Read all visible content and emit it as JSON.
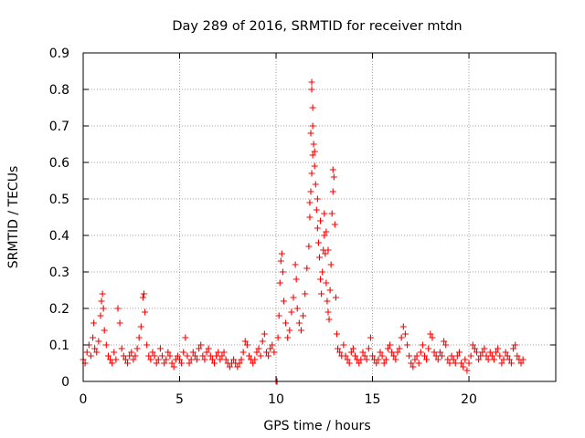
{
  "chart_data": {
    "type": "scatter",
    "title": "Day 289 of 2016, SRMTID for receiver mtdn",
    "xlabel": "GPS time / hours",
    "ylabel": "SRMTID / TECUs",
    "xlim": [
      0,
      24.5
    ],
    "ylim": [
      0,
      0.9
    ],
    "x_ticks": [
      0,
      5,
      10,
      15,
      20
    ],
    "x_tick_labels": [
      "0",
      "5",
      "10",
      "15",
      "20"
    ],
    "y_ticks": [
      0,
      0.1,
      0.2,
      0.3,
      0.4,
      0.5,
      0.6,
      0.7,
      0.8,
      0.9
    ],
    "y_tick_labels": [
      "0",
      "0.1",
      "0.2",
      "0.3",
      "0.4",
      "0.5",
      "0.6",
      "0.7",
      "0.8",
      "0.9"
    ],
    "grid": true,
    "marker": "+",
    "series": [
      {
        "name": "SRMTID",
        "color": "#ff0000",
        "points": [
          [
            0.0,
            0.06
          ],
          [
            0.1,
            0.05
          ],
          [
            0.2,
            0.08
          ],
          [
            0.3,
            0.1
          ],
          [
            0.4,
            0.07
          ],
          [
            0.5,
            0.12
          ],
          [
            0.55,
            0.16
          ],
          [
            0.6,
            0.09
          ],
          [
            0.7,
            0.08
          ],
          [
            0.8,
            0.11
          ],
          [
            0.9,
            0.18
          ],
          [
            0.95,
            0.22
          ],
          [
            1.0,
            0.24
          ],
          [
            1.05,
            0.2
          ],
          [
            1.1,
            0.14
          ],
          [
            1.2,
            0.1
          ],
          [
            1.3,
            0.07
          ],
          [
            1.4,
            0.06
          ],
          [
            1.5,
            0.05
          ],
          [
            1.6,
            0.08
          ],
          [
            1.7,
            0.06
          ],
          [
            1.8,
            0.2
          ],
          [
            1.9,
            0.16
          ],
          [
            2.0,
            0.09
          ],
          [
            2.1,
            0.07
          ],
          [
            2.2,
            0.06
          ],
          [
            2.3,
            0.05
          ],
          [
            2.4,
            0.07
          ],
          [
            2.5,
            0.08
          ],
          [
            2.6,
            0.06
          ],
          [
            2.7,
            0.07
          ],
          [
            2.8,
            0.09
          ],
          [
            2.9,
            0.12
          ],
          [
            3.0,
            0.15
          ],
          [
            3.1,
            0.23
          ],
          [
            3.15,
            0.24
          ],
          [
            3.2,
            0.19
          ],
          [
            3.3,
            0.1
          ],
          [
            3.4,
            0.07
          ],
          [
            3.5,
            0.06
          ],
          [
            3.6,
            0.08
          ],
          [
            3.7,
            0.07
          ],
          [
            3.8,
            0.05
          ],
          [
            3.9,
            0.06
          ],
          [
            4.0,
            0.09
          ],
          [
            4.1,
            0.07
          ],
          [
            4.2,
            0.05
          ],
          [
            4.3,
            0.06
          ],
          [
            4.4,
            0.08
          ],
          [
            4.5,
            0.07
          ],
          [
            4.6,
            0.05
          ],
          [
            4.7,
            0.04
          ],
          [
            4.8,
            0.06
          ],
          [
            4.9,
            0.07
          ],
          [
            5.0,
            0.06
          ],
          [
            5.1,
            0.05
          ],
          [
            5.2,
            0.08
          ],
          [
            5.3,
            0.12
          ],
          [
            5.4,
            0.07
          ],
          [
            5.5,
            0.05
          ],
          [
            5.6,
            0.06
          ],
          [
            5.7,
            0.08
          ],
          [
            5.8,
            0.07
          ],
          [
            5.9,
            0.06
          ],
          [
            6.0,
            0.09
          ],
          [
            6.1,
            0.1
          ],
          [
            6.2,
            0.07
          ],
          [
            6.3,
            0.06
          ],
          [
            6.4,
            0.08
          ],
          [
            6.5,
            0.09
          ],
          [
            6.6,
            0.07
          ],
          [
            6.7,
            0.06
          ],
          [
            6.8,
            0.05
          ],
          [
            6.9,
            0.07
          ],
          [
            7.0,
            0.08
          ],
          [
            7.1,
            0.06
          ],
          [
            7.2,
            0.07
          ],
          [
            7.3,
            0.08
          ],
          [
            7.4,
            0.06
          ],
          [
            7.5,
            0.05
          ],
          [
            7.6,
            0.04
          ],
          [
            7.7,
            0.05
          ],
          [
            7.8,
            0.06
          ],
          [
            7.9,
            0.05
          ],
          [
            8.0,
            0.04
          ],
          [
            8.1,
            0.05
          ],
          [
            8.2,
            0.06
          ],
          [
            8.3,
            0.08
          ],
          [
            8.4,
            0.11
          ],
          [
            8.5,
            0.1
          ],
          [
            8.6,
            0.07
          ],
          [
            8.7,
            0.06
          ],
          [
            8.8,
            0.05
          ],
          [
            8.9,
            0.06
          ],
          [
            9.0,
            0.08
          ],
          [
            9.1,
            0.09
          ],
          [
            9.2,
            0.07
          ],
          [
            9.3,
            0.11
          ],
          [
            9.4,
            0.13
          ],
          [
            9.5,
            0.08
          ],
          [
            9.6,
            0.07
          ],
          [
            9.7,
            0.09
          ],
          [
            9.8,
            0.1
          ],
          [
            9.9,
            0.08
          ],
          [
            10.0,
            0.0
          ],
          [
            10.05,
            0.0
          ],
          [
            10.1,
            0.12
          ],
          [
            10.15,
            0.18
          ],
          [
            10.2,
            0.27
          ],
          [
            10.25,
            0.33
          ],
          [
            10.3,
            0.35
          ],
          [
            10.35,
            0.3
          ],
          [
            10.4,
            0.22
          ],
          [
            10.5,
            0.16
          ],
          [
            10.6,
            0.12
          ],
          [
            10.7,
            0.14
          ],
          [
            10.8,
            0.19
          ],
          [
            10.9,
            0.23
          ],
          [
            11.0,
            0.32
          ],
          [
            11.05,
            0.28
          ],
          [
            11.1,
            0.2
          ],
          [
            11.2,
            0.16
          ],
          [
            11.3,
            0.14
          ],
          [
            11.4,
            0.18
          ],
          [
            11.5,
            0.24
          ],
          [
            11.6,
            0.31
          ],
          [
            11.7,
            0.37
          ],
          [
            11.75,
            0.45
          ],
          [
            11.8,
            0.52
          ],
          [
            11.85,
            0.57
          ],
          [
            11.9,
            0.62
          ],
          [
            11.95,
            0.65
          ],
          [
            12.0,
            0.59
          ],
          [
            12.05,
            0.54
          ],
          [
            12.1,
            0.47
          ],
          [
            12.15,
            0.42
          ],
          [
            12.2,
            0.38
          ],
          [
            12.25,
            0.34
          ],
          [
            12.3,
            0.28
          ],
          [
            12.35,
            0.24
          ],
          [
            12.4,
            0.3
          ],
          [
            12.45,
            0.36
          ],
          [
            12.5,
            0.4
          ],
          [
            12.55,
            0.35
          ],
          [
            12.6,
            0.27
          ],
          [
            12.65,
            0.22
          ],
          [
            12.7,
            0.19
          ],
          [
            12.75,
            0.17
          ],
          [
            12.8,
            0.25
          ],
          [
            12.85,
            0.32
          ],
          [
            12.9,
            0.46
          ],
          [
            12.95,
            0.52
          ],
          [
            13.0,
            0.56
          ],
          [
            13.05,
            0.43
          ],
          [
            13.1,
            0.23
          ],
          [
            13.15,
            0.13
          ],
          [
            13.2,
            0.09
          ],
          [
            11.85,
            0.82
          ],
          [
            11.85,
            0.8
          ],
          [
            11.9,
            0.75
          ],
          [
            11.9,
            0.7
          ],
          [
            11.8,
            0.68
          ],
          [
            12.0,
            0.63
          ],
          [
            11.75,
            0.49
          ],
          [
            12.15,
            0.5
          ],
          [
            12.3,
            0.44
          ],
          [
            12.5,
            0.46
          ],
          [
            12.6,
            0.41
          ],
          [
            12.7,
            0.36
          ],
          [
            12.95,
            0.58
          ],
          [
            13.3,
            0.08
          ],
          [
            13.4,
            0.07
          ],
          [
            13.5,
            0.1
          ],
          [
            13.6,
            0.07
          ],
          [
            13.7,
            0.06
          ],
          [
            13.8,
            0.05
          ],
          [
            13.9,
            0.08
          ],
          [
            14.0,
            0.09
          ],
          [
            14.1,
            0.07
          ],
          [
            14.2,
            0.06
          ],
          [
            14.3,
            0.05
          ],
          [
            14.4,
            0.06
          ],
          [
            14.5,
            0.08
          ],
          [
            14.6,
            0.07
          ],
          [
            14.7,
            0.06
          ],
          [
            14.8,
            0.09
          ],
          [
            14.9,
            0.12
          ],
          [
            15.0,
            0.07
          ],
          [
            15.1,
            0.06
          ],
          [
            15.2,
            0.05
          ],
          [
            15.3,
            0.06
          ],
          [
            15.4,
            0.08
          ],
          [
            15.5,
            0.07
          ],
          [
            15.6,
            0.05
          ],
          [
            15.7,
            0.06
          ],
          [
            15.8,
            0.09
          ],
          [
            15.9,
            0.1
          ],
          [
            16.0,
            0.08
          ],
          [
            16.1,
            0.07
          ],
          [
            16.2,
            0.06
          ],
          [
            16.3,
            0.08
          ],
          [
            16.4,
            0.09
          ],
          [
            16.5,
            0.12
          ],
          [
            16.6,
            0.15
          ],
          [
            16.7,
            0.13
          ],
          [
            16.8,
            0.1
          ],
          [
            16.9,
            0.07
          ],
          [
            17.0,
            0.05
          ],
          [
            17.1,
            0.04
          ],
          [
            17.2,
            0.06
          ],
          [
            17.3,
            0.07
          ],
          [
            17.4,
            0.05
          ],
          [
            17.5,
            0.08
          ],
          [
            17.6,
            0.1
          ],
          [
            17.7,
            0.07
          ],
          [
            17.8,
            0.06
          ],
          [
            17.9,
            0.09
          ],
          [
            18.0,
            0.13
          ],
          [
            18.1,
            0.12
          ],
          [
            18.2,
            0.08
          ],
          [
            18.3,
            0.07
          ],
          [
            18.4,
            0.06
          ],
          [
            18.5,
            0.08
          ],
          [
            18.6,
            0.07
          ],
          [
            18.7,
            0.11
          ],
          [
            18.8,
            0.1
          ],
          [
            18.9,
            0.06
          ],
          [
            19.0,
            0.05
          ],
          [
            19.1,
            0.07
          ],
          [
            19.2,
            0.06
          ],
          [
            19.3,
            0.05
          ],
          [
            19.4,
            0.07
          ],
          [
            19.5,
            0.08
          ],
          [
            19.6,
            0.05
          ],
          [
            19.7,
            0.04
          ],
          [
            19.8,
            0.06
          ],
          [
            19.9,
            0.03
          ],
          [
            20.0,
            0.05
          ],
          [
            20.1,
            0.07
          ],
          [
            20.2,
            0.1
          ],
          [
            20.3,
            0.09
          ],
          [
            20.4,
            0.08
          ],
          [
            20.5,
            0.06
          ],
          [
            20.6,
            0.07
          ],
          [
            20.7,
            0.08
          ],
          [
            20.8,
            0.09
          ],
          [
            20.9,
            0.07
          ],
          [
            21.0,
            0.06
          ],
          [
            21.1,
            0.08
          ],
          [
            21.2,
            0.07
          ],
          [
            21.3,
            0.06
          ],
          [
            21.4,
            0.08
          ],
          [
            21.5,
            0.09
          ],
          [
            21.6,
            0.07
          ],
          [
            21.7,
            0.05
          ],
          [
            21.8,
            0.06
          ],
          [
            21.9,
            0.08
          ],
          [
            22.0,
            0.07
          ],
          [
            22.1,
            0.06
          ],
          [
            22.2,
            0.05
          ],
          [
            22.3,
            0.09
          ],
          [
            22.4,
            0.1
          ],
          [
            22.5,
            0.07
          ],
          [
            22.6,
            0.06
          ],
          [
            22.7,
            0.05
          ],
          [
            22.8,
            0.06
          ]
        ]
      }
    ]
  }
}
